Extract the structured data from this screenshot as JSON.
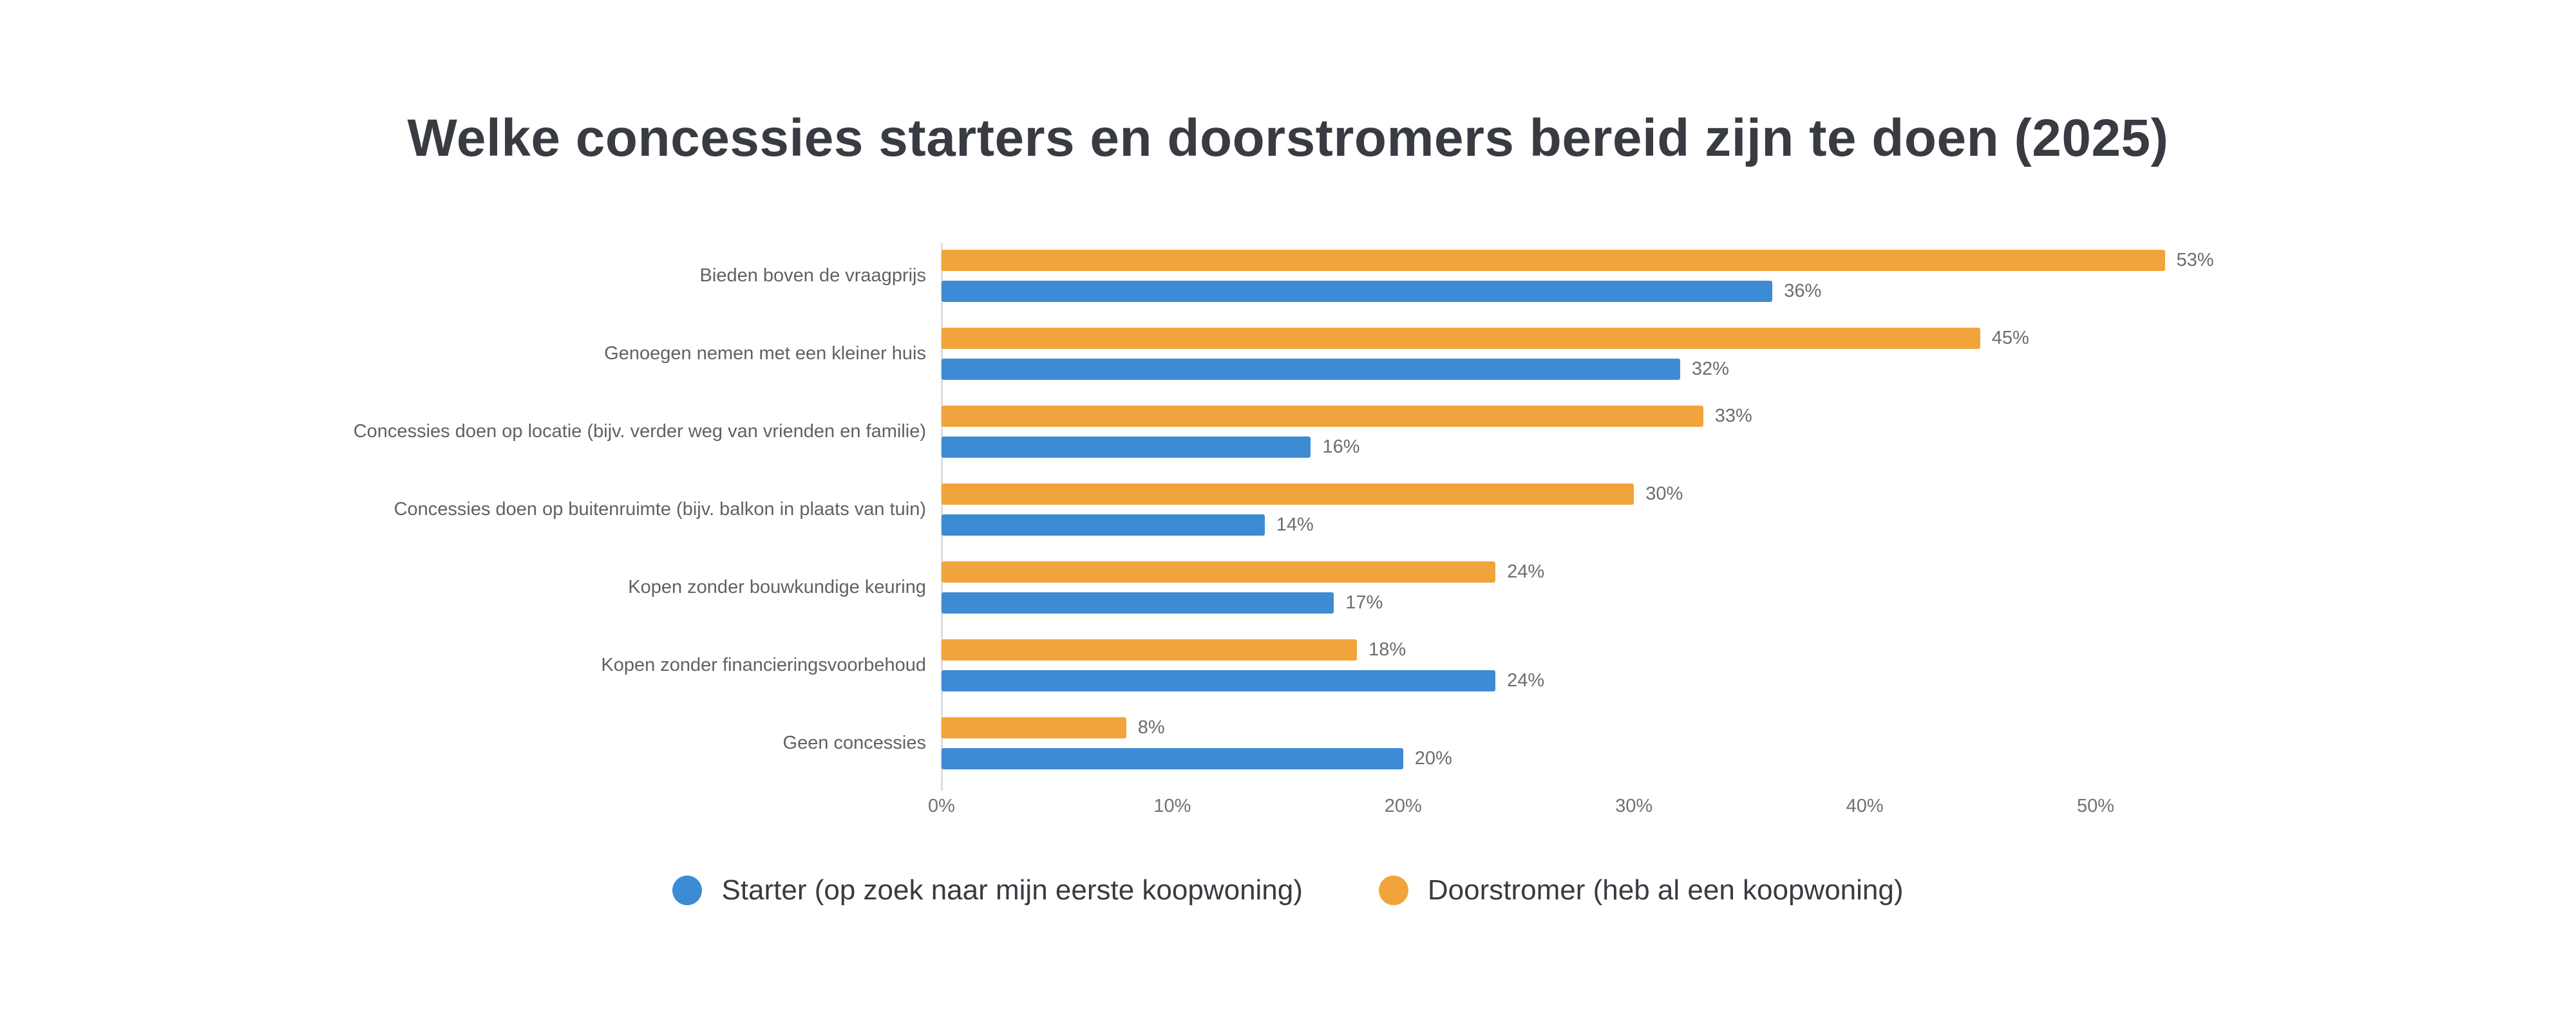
{
  "title": "Welke concessies starters en doorstromers bereid zijn te doen (2025)",
  "colors": {
    "starter_blue": "#3d8bd4",
    "doorstromer_orange": "#f2a43c",
    "axis_line": "#dcdcdc",
    "label_gray": "#5f6265",
    "title_dark": "#383b41"
  },
  "legend": [
    {
      "label": "Starter (op zoek naar mijn eerste koopwoning)",
      "color": "#3d8bd4"
    },
    {
      "label": "Doorstromer (heb al een koopwoning)",
      "color": "#f2a43c"
    }
  ],
  "chart_data": {
    "type": "bar",
    "orientation": "horizontal",
    "title": "Welke concessies starters en doorstromers bereid zijn te doen (2025)",
    "categories": [
      "Bieden boven de vraagprijs",
      "Genoegen nemen met een kleiner huis",
      "Concessies doen op locatie (bijv. verder weg van vrienden en familie)",
      "Concessies doen op buitenruimte (bijv. balkon in plaats van tuin)",
      "Kopen zonder bouwkundige keuring",
      "Kopen zonder financieringsvoorbehoud",
      "Geen concessies"
    ],
    "series": [
      {
        "key": "doorstromer",
        "name": "Doorstromer (heb al een koopwoning)",
        "color": "#f2a43c",
        "values": [
          53,
          45,
          33,
          30,
          24,
          18,
          8
        ]
      },
      {
        "key": "starter",
        "name": "Starter (op zoek naar mijn eerste koopwoning)",
        "color": "#3d8bd4",
        "values": [
          36,
          32,
          16,
          14,
          17,
          24,
          20
        ]
      }
    ],
    "value_suffix": "%",
    "x_ticks": [
      "0%",
      "10%",
      "20%",
      "30%",
      "40%",
      "50%"
    ],
    "x_tick_values": [
      0,
      10,
      20,
      30,
      40,
      50
    ],
    "xlim": [
      0,
      56
    ],
    "xlabel": "",
    "ylabel": "",
    "grid": false,
    "legend_position": "bottom"
  }
}
